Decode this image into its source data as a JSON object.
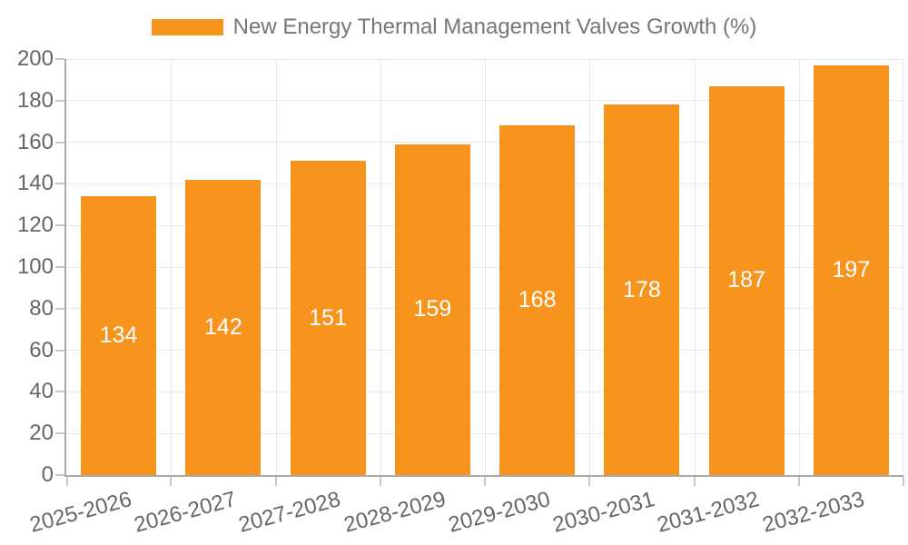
{
  "legend": {
    "series_label": "New Energy Thermal Management Valves Growth (%)"
  },
  "colors": {
    "bar": "#F7941E",
    "bar_label": "#FFFFFF",
    "axis_line": "#AAAAAA",
    "tick_mark": "#C8C8C8",
    "grid_line": "#E8E8E8",
    "axis_label": "#666666",
    "legend_text": "#777777",
    "background": "#FFFFFF"
  },
  "chart_data": {
    "type": "bar",
    "title": "New Energy Thermal Management Valves Growth (%)",
    "categories": [
      "2025-2026",
      "2026-2027",
      "2027-2028",
      "2028-2029",
      "2029-2030",
      "2030-2031",
      "2031-2032",
      "2032-2033"
    ],
    "values": [
      134,
      142,
      151,
      159,
      168,
      178,
      187,
      197
    ],
    "xlabel": "",
    "ylabel": "",
    "ylim": [
      0,
      200
    ],
    "ytick_step": 20,
    "yticks": [
      0,
      20,
      40,
      60,
      80,
      100,
      120,
      140,
      160,
      180,
      200
    ],
    "grid": true,
    "legend_position": "top-center",
    "bar_label_position": "inside-center",
    "x_label_rotation_deg": -15
  }
}
